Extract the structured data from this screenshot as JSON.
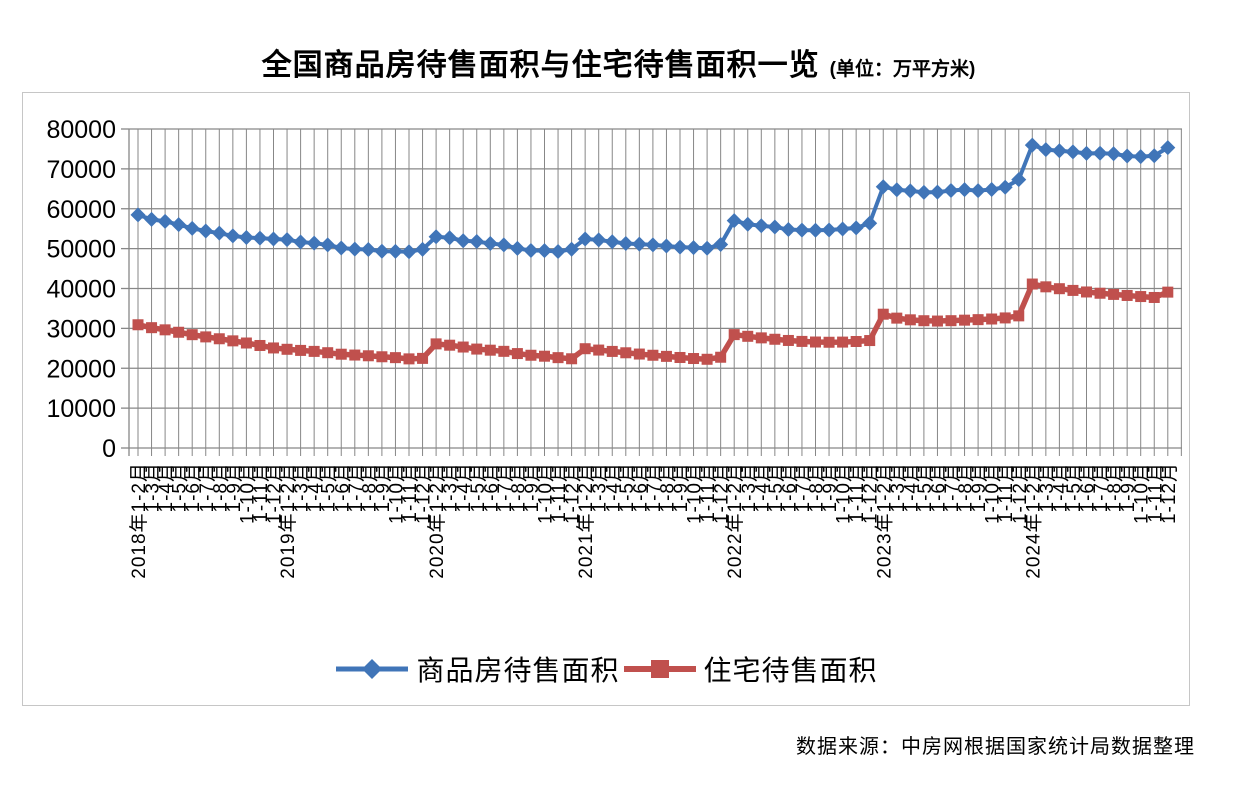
{
  "title": "全国商品房待售面积与住宅待售面积一览",
  "unit_note": "(单位：万平方米)",
  "source": "数据来源：中房网根据国家统计局数据整理",
  "colors": {
    "commodity": "#4075B8",
    "residential": "#C0504D",
    "gridline": "#878787",
    "border": "#c6c6c6",
    "text": "#000000"
  },
  "legend": [
    {
      "label": "商品房待售面积",
      "marker": "diamond",
      "color": "#4075B8"
    },
    {
      "label": "住宅待售面积",
      "marker": "square",
      "color": "#C0504D"
    }
  ],
  "chart_data": {
    "type": "line",
    "title": "全国商品房待售面积与住宅待售面积一览",
    "unit": "万平方米",
    "xlabel": "",
    "ylabel": "",
    "ylim": [
      0,
      80000
    ],
    "y_ticks": [
      0,
      10000,
      20000,
      30000,
      40000,
      50000,
      60000,
      70000,
      80000
    ],
    "grid": true,
    "legend_position": "bottom",
    "x_labels": [
      "2018年1-2月",
      "1-3月",
      "1-4月",
      "1-5月",
      "1-6月",
      "1-7月",
      "1-8月",
      "1-9月",
      "1-10月",
      "1-11月",
      "1-12月",
      "2019年1-2月",
      "1-3月",
      "1-4月",
      "1-5月",
      "1-6月",
      "1-7月",
      "1-8月",
      "1-9月",
      "1-10月",
      "1-11月",
      "1-12月",
      "2020年1-2月",
      "1-3月",
      "1-4月",
      "1-5月",
      "1-6月",
      "1-7月",
      "1-8月",
      "1-9月",
      "1-10月",
      "1-11月",
      "1-12月",
      "2021年1-2月",
      "1-3月",
      "1-4月",
      "1-5月",
      "1-6月",
      "1-7月",
      "1-8月",
      "1-9月",
      "1-10月",
      "1-11月",
      "1-12月",
      "2022年1-2月",
      "1-3月",
      "1-4月",
      "1-5月",
      "1-6月",
      "1-7月",
      "1-8月",
      "1-9月",
      "1-10月",
      "1-11月",
      "1-12月",
      "2023年1-2月",
      "1-3月",
      "1-4月",
      "1-5月",
      "1-6月",
      "1-7月",
      "1-8月",
      "1-9月",
      "1-10月",
      "1-11月",
      "1-12月",
      "2024年1-2月",
      "1-3月",
      "1-4月",
      "1-5月",
      "1-6月",
      "1-7月",
      "1-8月",
      "1-9月",
      "1-10月",
      "1-11月",
      "1-12月"
    ],
    "series": [
      {
        "name": "商品房待售面积",
        "marker": "diamond",
        "color": "#4075B8",
        "values": [
          58468,
          57329,
          56839,
          56010,
          55083,
          54428,
          53873,
          53191,
          52789,
          52627,
          52414,
          52251,
          51646,
          51380,
          50928,
          50162,
          49876,
          49784,
          49346,
          49323,
          49221,
          49821,
          52975,
          52726,
          51976,
          51773,
          51276,
          50929,
          50052,
          49539,
          49492,
          49287,
          49850,
          52425,
          52183,
          51727,
          51293,
          51136,
          50926,
          50648,
          50385,
          50246,
          50092,
          51023,
          57026,
          56113,
          55734,
          55433,
          54784,
          54655,
          54605,
          54666,
          54912,
          55203,
          56366,
          65528,
          64770,
          64487,
          64120,
          64159,
          64564,
          64795,
          64537,
          64835,
          65385,
          67295,
          75969,
          74833,
          74553,
          74256,
          73894,
          73926,
          73783,
          73228,
          73057,
          73286,
          75327
        ]
      },
      {
        "name": "住宅待售面积",
        "marker": "square",
        "color": "#C0504D",
        "values": [
          30906,
          30177,
          29633,
          29026,
          28421,
          27865,
          27394,
          26869,
          26330,
          25709,
          25091,
          24753,
          24474,
          24226,
          23900,
          23520,
          23310,
          23130,
          22880,
          22660,
          22352,
          22473,
          26111,
          25780,
          25320,
          24810,
          24530,
          24240,
          23680,
          23260,
          23020,
          22660,
          22379,
          24900,
          24560,
          24220,
          23880,
          23560,
          23260,
          22980,
          22700,
          22440,
          22250,
          22761,
          28437,
          28010,
          27620,
          27270,
          26970,
          26730,
          26580,
          26520,
          26560,
          26710,
          26947,
          33555,
          32570,
          32145,
          31920,
          31836,
          31930,
          32060,
          32190,
          32350,
          32620,
          33139,
          41118,
          40420,
          39950,
          39520,
          39130,
          38810,
          38520,
          38250,
          37980,
          37750,
          39088
        ]
      }
    ]
  }
}
